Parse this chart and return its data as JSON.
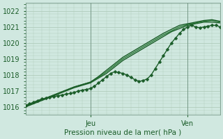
{
  "title": "",
  "xlabel": "Pression niveau de la mer( hPa )",
  "ylabel": "",
  "background_color": "#d0e8e0",
  "plot_bg_color": "#d0e8e0",
  "grid_color": "#b0ccbb",
  "ylim": [
    1015.5,
    1022.5
  ],
  "xlim": [
    0,
    48
  ],
  "yticks": [
    1016,
    1017,
    1018,
    1019,
    1020,
    1021,
    1022
  ],
  "day_ticks": [
    16,
    40
  ],
  "day_labels": [
    "Jeu",
    "Ven"
  ],
  "line_color_dark": "#1a5c28",
  "line_color_mid": "#2a7a38",
  "linewidth": 1.0,
  "marker_style": "D",
  "marker_size": 2.5,
  "series": [
    {
      "x": [
        0,
        1,
        2,
        3,
        4,
        5,
        6,
        7,
        8,
        9,
        10,
        11,
        12,
        13,
        14,
        15,
        16,
        17,
        18,
        19,
        20,
        21,
        22,
        23,
        24,
        25,
        26,
        27,
        28,
        29,
        30,
        31,
        32,
        33,
        34,
        35,
        36,
        37,
        38,
        39,
        40,
        41,
        42,
        43,
        44,
        45,
        46,
        47,
        48
      ],
      "y": [
        1016.1,
        1016.2,
        1016.3,
        1016.4,
        1016.5,
        1016.55,
        1016.6,
        1016.65,
        1016.7,
        1016.75,
        1016.8,
        1016.85,
        1016.9,
        1017.0,
        1017.05,
        1017.1,
        1017.15,
        1017.3,
        1017.5,
        1017.7,
        1017.9,
        1018.1,
        1018.2,
        1018.15,
        1018.1,
        1018.0,
        1017.85,
        1017.7,
        1017.6,
        1017.65,
        1017.75,
        1018.0,
        1018.4,
        1018.8,
        1019.2,
        1019.6,
        1020.0,
        1020.3,
        1020.6,
        1020.85,
        1021.0,
        1021.1,
        1021.0,
        1020.95,
        1021.0,
        1021.05,
        1021.1,
        1021.1,
        1021.0
      ],
      "color": "#1a5c28",
      "has_markers": true
    },
    {
      "x": [
        0,
        2,
        4,
        6,
        8,
        10,
        12,
        14,
        16,
        18,
        20,
        22,
        24,
        26,
        28,
        30,
        32,
        34,
        36,
        38,
        40,
        42,
        44,
        46,
        48
      ],
      "y": [
        1016.0,
        1016.2,
        1016.4,
        1016.6,
        1016.8,
        1017.0,
        1017.2,
        1017.35,
        1017.5,
        1017.8,
        1018.1,
        1018.5,
        1018.9,
        1019.2,
        1019.5,
        1019.8,
        1020.1,
        1020.4,
        1020.7,
        1020.9,
        1021.1,
        1021.2,
        1021.3,
        1021.3,
        1021.25
      ],
      "color": "#1a5c28",
      "has_markers": false
    },
    {
      "x": [
        0,
        2,
        4,
        6,
        8,
        10,
        12,
        14,
        16,
        18,
        20,
        22,
        24,
        26,
        28,
        30,
        32,
        34,
        36,
        38,
        40,
        42,
        44,
        46,
        48
      ],
      "y": [
        1016.05,
        1016.25,
        1016.45,
        1016.65,
        1016.85,
        1017.05,
        1017.25,
        1017.4,
        1017.55,
        1017.85,
        1018.2,
        1018.6,
        1019.0,
        1019.3,
        1019.6,
        1019.9,
        1020.2,
        1020.5,
        1020.75,
        1021.0,
        1021.15,
        1021.25,
        1021.35,
        1021.4,
        1021.3
      ],
      "color": "#2a7a38",
      "has_markers": false
    },
    {
      "x": [
        0,
        2,
        4,
        6,
        8,
        10,
        12,
        14,
        16,
        18,
        20,
        22,
        24,
        26,
        28,
        30,
        32,
        34,
        36,
        38,
        40,
        42,
        44,
        46,
        48
      ],
      "y": [
        1016.05,
        1016.25,
        1016.45,
        1016.65,
        1016.85,
        1017.05,
        1017.25,
        1017.4,
        1017.55,
        1017.9,
        1018.3,
        1018.7,
        1019.1,
        1019.4,
        1019.7,
        1020.0,
        1020.3,
        1020.6,
        1020.85,
        1021.1,
        1021.2,
        1021.3,
        1021.4,
        1021.45,
        1021.35
      ],
      "color": "#1a5c28",
      "has_markers": false
    }
  ]
}
